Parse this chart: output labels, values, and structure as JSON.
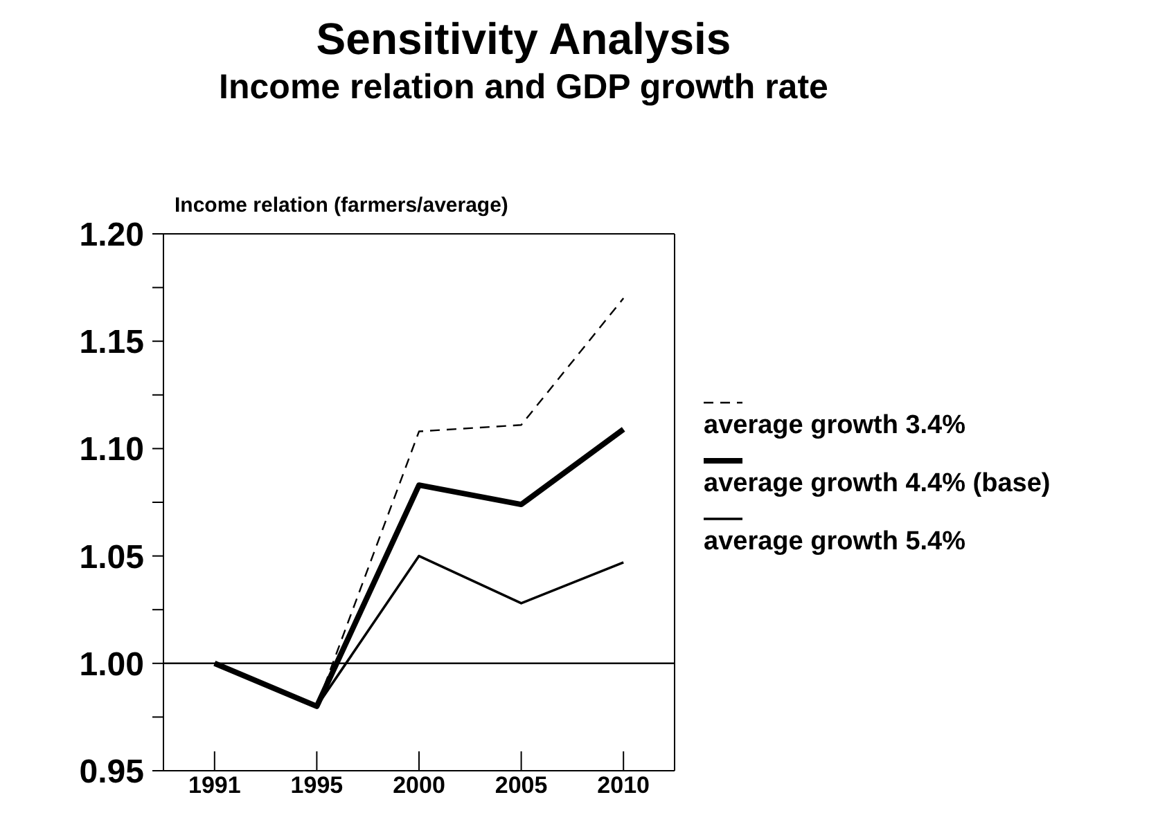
{
  "chart_data": {
    "type": "line",
    "title": "Sensitivity Analysis",
    "subtitle": "Income relation and GDP growth rate",
    "ylabel": "Income relation (farmers/average)",
    "categories": [
      "1991",
      "1995",
      "2000",
      "2005",
      "2010"
    ],
    "series": [
      {
        "name": "average growth 3.4%",
        "color": "#000000",
        "line_style": "dashed",
        "values": [
          1.0,
          0.98,
          1.108,
          1.111,
          1.17
        ]
      },
      {
        "name": "average growth 4.4% (base)",
        "color": "#000000",
        "line_style": "solid",
        "values": [
          1.0,
          0.98,
          1.083,
          1.074,
          1.109
        ]
      },
      {
        "name": "average growth 5.4%",
        "color": "#000000",
        "line_style": "solid",
        "values": [
          1.0,
          0.98,
          1.05,
          1.028,
          1.047
        ]
      }
    ],
    "ylim": [
      0.95,
      1.2
    ],
    "yticks": [
      {
        "value": 0.95,
        "label": "0.95"
      },
      {
        "value": 0.975,
        "label": null
      },
      {
        "value": 1.0,
        "label": "1.00"
      },
      {
        "value": 1.025,
        "label": null
      },
      {
        "value": 1.05,
        "label": "1.05"
      },
      {
        "value": 1.075,
        "label": null
      },
      {
        "value": 1.1,
        "label": "1.10"
      },
      {
        "value": 1.125,
        "label": null
      },
      {
        "value": 1.15,
        "label": "1.15"
      },
      {
        "value": 1.175,
        "label": null
      },
      {
        "value": 1.2,
        "label": "1.20"
      }
    ],
    "ref_lines": [
      {
        "axis": "y",
        "value": 1.0,
        "color": "#000000"
      }
    ],
    "grid": false,
    "legend": "right",
    "marker": "none"
  }
}
